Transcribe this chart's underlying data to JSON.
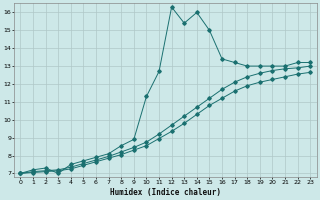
{
  "xlabel": "Humidex (Indice chaleur)",
  "background_color": "#cde8e8",
  "grid_color": "#b0c8c8",
  "line_color": "#1a7070",
  "xlim": [
    -0.5,
    23.5
  ],
  "ylim": [
    6.8,
    16.5
  ],
  "xticks": [
    0,
    1,
    2,
    3,
    4,
    5,
    6,
    7,
    8,
    9,
    10,
    11,
    12,
    13,
    14,
    15,
    16,
    17,
    18,
    19,
    20,
    21,
    22,
    23
  ],
  "yticks": [
    7,
    8,
    9,
    10,
    11,
    12,
    13,
    14,
    15,
    16
  ],
  "line1_x": [
    0,
    1,
    2,
    3,
    4,
    5,
    6,
    7,
    8,
    9,
    10,
    11,
    12,
    13,
    14,
    15,
    16,
    17,
    18,
    19,
    20,
    21,
    22,
    23
  ],
  "line1_y": [
    7.0,
    7.2,
    7.3,
    7.0,
    7.5,
    7.7,
    7.9,
    8.1,
    8.55,
    8.9,
    11.3,
    12.7,
    16.3,
    15.4,
    16.0,
    15.0,
    13.4,
    13.2,
    13.0,
    13.0,
    13.0,
    13.0,
    13.2,
    13.2
  ],
  "line2_x": [
    0,
    1,
    2,
    3,
    4,
    5,
    6,
    7,
    8,
    9,
    10,
    11,
    12,
    13,
    14,
    15,
    16,
    17,
    18,
    19,
    20,
    21,
    22,
    23
  ],
  "line2_y": [
    7.0,
    7.1,
    7.15,
    7.2,
    7.35,
    7.55,
    7.75,
    7.95,
    8.2,
    8.45,
    8.75,
    9.2,
    9.7,
    10.2,
    10.7,
    11.2,
    11.7,
    12.1,
    12.4,
    12.6,
    12.75,
    12.85,
    12.9,
    13.0
  ],
  "line3_x": [
    0,
    1,
    2,
    3,
    4,
    5,
    6,
    7,
    8,
    9,
    10,
    11,
    12,
    13,
    14,
    15,
    16,
    17,
    18,
    19,
    20,
    21,
    22,
    23
  ],
  "line3_y": [
    7.0,
    7.05,
    7.1,
    7.15,
    7.25,
    7.45,
    7.65,
    7.85,
    8.05,
    8.3,
    8.55,
    8.95,
    9.35,
    9.8,
    10.3,
    10.8,
    11.2,
    11.6,
    11.9,
    12.1,
    12.25,
    12.4,
    12.55,
    12.65
  ]
}
